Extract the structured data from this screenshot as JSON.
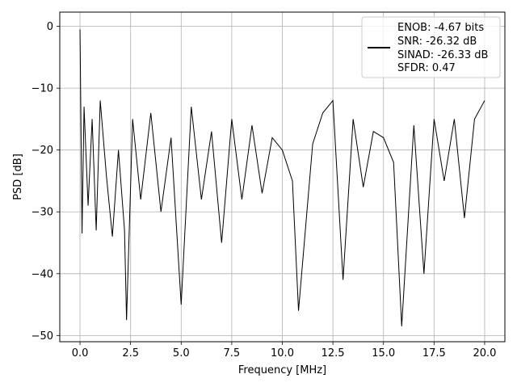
{
  "chart_data": {
    "type": "line",
    "title": "",
    "xlabel": "Frequency [MHz]",
    "ylabel": "PSD [dB]",
    "xlim": [
      -1.0,
      21.0
    ],
    "ylim": [
      -51.0,
      2.3
    ],
    "grid": true,
    "line_color": "#000000",
    "xticks": [
      0.0,
      2.5,
      5.0,
      7.5,
      10.0,
      12.5,
      15.0,
      17.5,
      20.0
    ],
    "xtick_labels": [
      "0.0",
      "2.5",
      "5.0",
      "7.5",
      "10.0",
      "12.5",
      "15.0",
      "17.5",
      "20.0"
    ],
    "yticks": [
      0,
      -10,
      -20,
      -30,
      -40,
      -50
    ],
    "ytick_labels": [
      "0",
      "−10",
      "−20",
      "−30",
      "−40",
      "−50"
    ],
    "legend": {
      "placement": "upper right",
      "entries": [
        "ENOB: -4.67 bits",
        "SNR: -26.32 dB",
        "SINAD: -26.33 dB",
        "SFDR: 0.47"
      ]
    },
    "series": [
      {
        "x": [
          0.0,
          0.1,
          0.2,
          0.4,
          0.6,
          0.8,
          1.0,
          1.3,
          1.6,
          1.9,
          2.2,
          2.3,
          2.6,
          3.0,
          3.5,
          4.0,
          4.5,
          5.0,
          5.5,
          6.0,
          6.5,
          7.0,
          7.5,
          8.0,
          8.5,
          9.0,
          9.5,
          10.0,
          10.5,
          10.8,
          11.5,
          12.0,
          12.5,
          13.0,
          13.5,
          14.0,
          14.5,
          15.0,
          15.5,
          15.9,
          16.5,
          17.0,
          17.5,
          18.0,
          18.5,
          19.0,
          19.5,
          20.0
        ],
        "y": [
          -0.5,
          -33.5,
          -13,
          -29,
          -15,
          -33,
          -12,
          -24,
          -34,
          -20,
          -33,
          -47.5,
          -15,
          -28,
          -14,
          -30,
          -18,
          -45,
          -13,
          -28,
          -17,
          -35,
          -15,
          -28,
          -16,
          -27,
          -18,
          -20,
          -25,
          -46,
          -19,
          -14,
          -12,
          -41,
          -15,
          -26,
          -17,
          -18,
          -22,
          -48.5,
          -16,
          -40,
          -15,
          -25,
          -15,
          -31,
          -15,
          -12
        ]
      }
    ]
  }
}
